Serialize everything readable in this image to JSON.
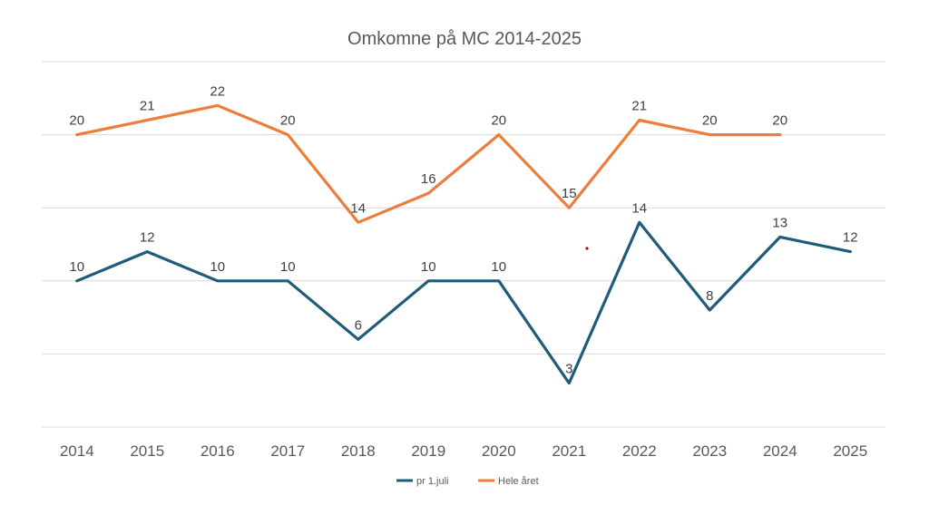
{
  "chart_data": {
    "type": "line",
    "title": "Omkomne på MC 2014-2025",
    "categories": [
      "2014",
      "2015",
      "2016",
      "2017",
      "2018",
      "2019",
      "2020",
      "2021",
      "2022",
      "2023",
      "2024",
      "2025"
    ],
    "series": [
      {
        "name": "pr 1.juli",
        "color": "#1f5c7a",
        "values": [
          10,
          12,
          10,
          10,
          6,
          10,
          10,
          3,
          14,
          8,
          13,
          12
        ],
        "labels": [
          "10",
          "12",
          "10",
          "10",
          "6",
          "10",
          "10",
          "3",
          "14",
          "8",
          "13",
          "12"
        ]
      },
      {
        "name": "Hele året",
        "color": "#ed7d3b",
        "values": [
          20,
          21,
          22,
          20,
          14,
          16,
          20,
          15,
          21,
          20,
          20,
          null
        ],
        "labels": [
          "20",
          "21",
          "22",
          "20",
          "14",
          "16",
          "20",
          "15",
          "21",
          "20",
          "20",
          ""
        ]
      }
    ],
    "ylim": [
      0,
      25
    ],
    "gridlines": [
      0,
      5,
      10,
      15,
      20,
      25
    ],
    "grid": true,
    "legend": "bottom",
    "xlabel": "",
    "ylabel": ""
  }
}
